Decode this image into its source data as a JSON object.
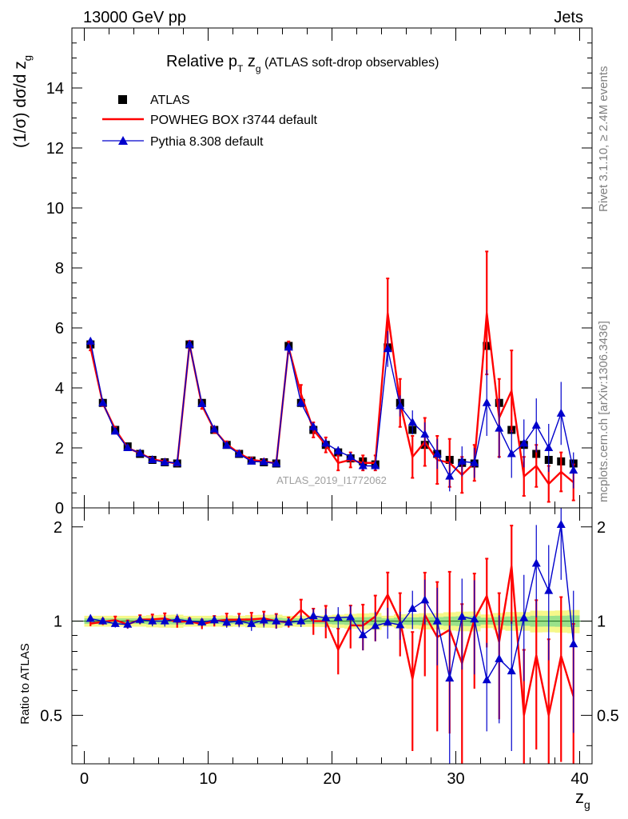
{
  "header": {
    "left": "13000 GeV pp",
    "right": "Jets"
  },
  "side_labels": {
    "rivet": "Rivet 3.1.10, ≥ 2.4M events",
    "mcplots": "mcplots.cern.ch [arXiv:1306.3436]"
  },
  "chart_data": {
    "type": "line",
    "title": "Relative pT zg (ATLAS soft-drop observables)",
    "title_parts": {
      "main": "Relative p",
      "sub_T": "T",
      "mid": " z",
      "sub_g": "g",
      "rest": " (ATLAS soft-drop observables)"
    },
    "xlabel": "z_g",
    "xlabel_parts": {
      "main": "z",
      "sub": "g"
    },
    "ylabel": "(1/σ) dσ/d z_g",
    "ylabel_parts": {
      "main": "(1/σ) dσ/d z",
      "sub": "g"
    },
    "ratio_ylabel": "Ratio to ATLAS",
    "watermark": "ATLAS_2019_I1772062",
    "xlim": [
      -1,
      41
    ],
    "ylim": [
      0,
      16
    ],
    "ratio_ylim": [
      0.35,
      2.3
    ],
    "xticks": [
      "0",
      "10",
      "20",
      "30",
      "40"
    ],
    "yticks": [
      "0",
      "2",
      "4",
      "6",
      "8",
      "10",
      "12",
      "14"
    ],
    "ratio_yticks": [
      "0.5",
      "1",
      "2"
    ],
    "legend": [
      {
        "name": "ATLAS",
        "color": "#000000",
        "marker": "square"
      },
      {
        "name": "POWHEG BOX r3744 default",
        "color": "#ff0000",
        "marker": "line"
      },
      {
        "name": "Pythia 8.308 default",
        "color": "#0000cc",
        "marker": "triangle"
      }
    ],
    "x": [
      0.5,
      1.5,
      2.5,
      3.5,
      4.5,
      5.5,
      6.5,
      7.5,
      8.5,
      9.5,
      10.5,
      11.5,
      12.5,
      13.5,
      14.5,
      15.5,
      16.5,
      17.5,
      18.5,
      19.5,
      20.5,
      21.5,
      22.5,
      23.5,
      24.5,
      25.5,
      26.5,
      27.5,
      28.5,
      29.5,
      30.5,
      31.5,
      32.5,
      33.5,
      34.5,
      35.5,
      36.5,
      37.5,
      38.5,
      39.5
    ],
    "series": [
      {
        "name": "ATLAS",
        "color": "#000000",
        "values": [
          5.45,
          3.5,
          2.6,
          2.05,
          1.8,
          1.6,
          1.52,
          1.48,
          5.45,
          3.5,
          2.6,
          2.1,
          1.8,
          1.58,
          1.52,
          1.48,
          5.4,
          3.5,
          2.6,
          2.1,
          1.85,
          1.65,
          1.55,
          1.45,
          5.35,
          3.5,
          2.6,
          2.1,
          1.8,
          1.6,
          1.5,
          1.48,
          5.4,
          3.5,
          2.6,
          2.1,
          1.8,
          1.6,
          1.55,
          1.48
        ],
        "err": [
          0.08,
          0.06,
          0.05,
          0.04,
          0.04,
          0.04,
          0.04,
          0.04,
          0.08,
          0.06,
          0.05,
          0.05,
          0.04,
          0.04,
          0.04,
          0.04,
          0.1,
          0.08,
          0.06,
          0.05,
          0.05,
          0.05,
          0.05,
          0.05,
          0.12,
          0.1,
          0.08,
          0.07,
          0.06,
          0.06,
          0.06,
          0.06,
          0.15,
          0.12,
          0.1,
          0.08,
          0.08,
          0.07,
          0.07,
          0.07
        ]
      },
      {
        "name": "POWHEG BOX r3744 default",
        "color": "#ff0000",
        "values": [
          5.35,
          3.48,
          2.62,
          2.0,
          1.82,
          1.62,
          1.55,
          1.47,
          5.45,
          3.42,
          2.6,
          2.12,
          1.82,
          1.6,
          1.55,
          1.48,
          5.35,
          3.8,
          2.6,
          2.1,
          1.5,
          1.6,
          1.5,
          1.5,
          6.5,
          3.5,
          1.7,
          2.2,
          1.6,
          1.5,
          1.1,
          1.5,
          6.5,
          3.0,
          3.9,
          1.05,
          1.4,
          0.8,
          1.2,
          0.85
        ],
        "err": [
          0.1,
          0.08,
          0.07,
          0.06,
          0.06,
          0.06,
          0.06,
          0.06,
          0.12,
          0.12,
          0.1,
          0.1,
          0.08,
          0.08,
          0.08,
          0.08,
          0.2,
          0.3,
          0.25,
          0.25,
          0.25,
          0.25,
          0.25,
          0.25,
          1.15,
          0.8,
          0.7,
          0.8,
          0.8,
          0.8,
          0.6,
          0.6,
          2.05,
          1.3,
          1.35,
          0.65,
          0.7,
          0.6,
          0.65,
          0.6
        ]
      },
      {
        "name": "Pythia 8.308 default",
        "color": "#0000cc",
        "values": [
          5.55,
          3.5,
          2.55,
          2.0,
          1.82,
          1.6,
          1.52,
          1.5,
          5.45,
          3.47,
          2.62,
          2.08,
          1.8,
          1.55,
          1.53,
          1.48,
          5.35,
          3.5,
          2.7,
          2.15,
          1.9,
          1.7,
          1.4,
          1.4,
          5.3,
          3.4,
          2.85,
          2.45,
          1.8,
          1.05,
          1.55,
          1.5,
          3.5,
          2.65,
          1.8,
          2.15,
          2.75,
          2.0,
          3.15,
          1.25
        ],
        "err": [
          0.1,
          0.08,
          0.07,
          0.06,
          0.06,
          0.06,
          0.06,
          0.06,
          0.12,
          0.1,
          0.09,
          0.08,
          0.08,
          0.08,
          0.08,
          0.08,
          0.15,
          0.15,
          0.15,
          0.15,
          0.15,
          0.15,
          0.15,
          0.15,
          0.6,
          0.35,
          0.4,
          0.4,
          0.5,
          0.5,
          0.5,
          0.5,
          1.1,
          1.0,
          0.8,
          0.8,
          0.9,
          0.8,
          1.05,
          0.6
        ]
      }
    ]
  }
}
